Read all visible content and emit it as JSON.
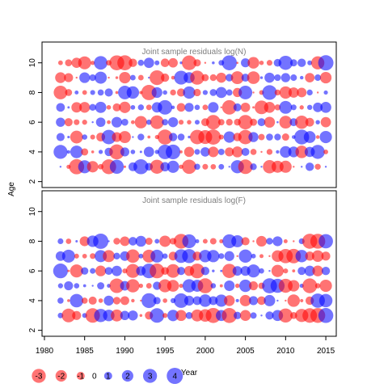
{
  "chart_data": {
    "type": "scatter",
    "subtype": "bubble-residuals",
    "ylabel": "Age",
    "xlabel": "Year",
    "x_ticks": [
      1980,
      1985,
      1990,
      1995,
      2000,
      2005,
      2010,
      2015
    ],
    "xlim": [
      1979.7,
      2016.3
    ],
    "colors": {
      "positive": "#0000ff",
      "negative": "#ff0000"
    },
    "bubble_opacity": 0.55,
    "max_abs_residual": 4,
    "panels": [
      {
        "title": "Joint sample residuals log(N)",
        "ylim": [
          1.6,
          11.4
        ],
        "y_ticks": [
          2,
          4,
          6,
          8,
          10
        ],
        "ages": [
          3,
          4,
          5,
          6,
          7,
          8,
          9,
          10
        ],
        "years": [
          1982,
          2015
        ],
        "seed": 9137
      },
      {
        "title": "Joint sample residuals log(F)",
        "ylim": [
          1.6,
          11.4
        ],
        "y_ticks": [
          2,
          4,
          6,
          8,
          10
        ],
        "ages": [
          3,
          4,
          5,
          6,
          7,
          8
        ],
        "years": [
          1982,
          2015
        ],
        "seed": 4421
      }
    ],
    "legend": {
      "values": [
        -3,
        -2,
        -1,
        0,
        1,
        2,
        3,
        4
      ],
      "labels": [
        "-3",
        "-2",
        "-1",
        "0",
        "1",
        "2",
        "3",
        "4"
      ]
    },
    "grid": false
  }
}
